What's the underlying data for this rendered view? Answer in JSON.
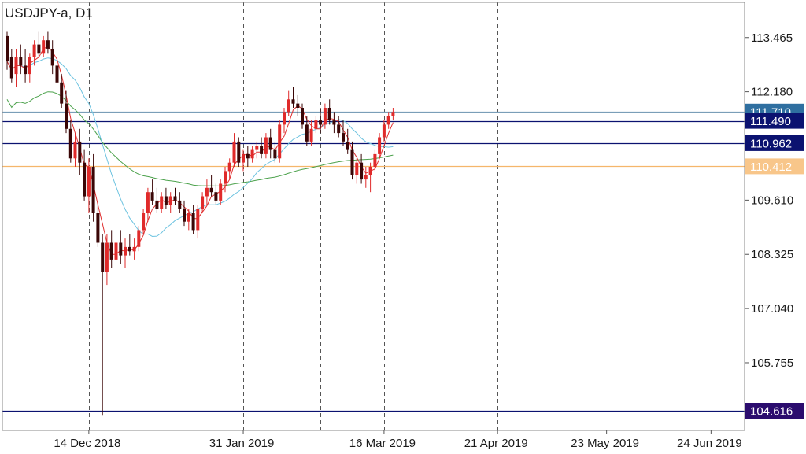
{
  "chart_data": {
    "type": "candlestick",
    "title": "USDJPY-a, D1",
    "symbol": "USDJPY-a",
    "timeframe": "D1",
    "ylim": [
      104.15,
      114.3
    ],
    "y_ticks": [
      113.465,
      112.18,
      109.61,
      108.325,
      107.04,
      105.755
    ],
    "y_tick_labels": [
      "113.465",
      "112.180",
      "109.610",
      "108.325",
      "107.040",
      "105.755"
    ],
    "x_ticks": [
      {
        "label": "14 Dec 2018",
        "bar": 18,
        "separator": true
      },
      {
        "label": "31 Jan 2019",
        "bar": 52,
        "separator": true
      },
      {
        "label": "16 Mar 2019",
        "bar": 83,
        "separator": true
      },
      {
        "label": "21 Apr 2019",
        "bar": 108,
        "separator": true
      },
      {
        "label": "23 May 2019",
        "bar": 132,
        "separator": false
      },
      {
        "label": "24 Jun 2019",
        "bar": 155,
        "separator": false
      }
    ],
    "extra_separators_bar": [
      69
    ],
    "colors": {
      "bull": "#e02a2a",
      "bear": "#3a0606",
      "ma_fast": "#e03030",
      "ma_mid": "#6ec3e0",
      "ma_slow": "#4ca24c",
      "grid": "#555555"
    },
    "horizontal_levels": [
      {
        "value": 111.71,
        "label": "111.710",
        "line": "#7a9eb8",
        "badge_bg": "#2f6fa0",
        "badge_fg": "#ffffff"
      },
      {
        "value": 111.49,
        "label": "111.490",
        "line": "#0b1270",
        "badge_bg": "#0b1270",
        "badge_fg": "#ffffff"
      },
      {
        "value": 110.962,
        "label": "110.962",
        "line": "#0b1270",
        "badge_bg": "#0b1270",
        "badge_fg": "#ffffff"
      },
      {
        "value": 110.412,
        "label": "110.412",
        "line": "#f5b66b",
        "badge_bg": "#f8c68a",
        "badge_fg": "#ffffff"
      },
      {
        "value": 104.616,
        "label": "104.616",
        "line": "#0b1270",
        "badge_bg": "#2b0c6e",
        "badge_fg": "#ffffff"
      }
    ],
    "ohlc": [
      [
        113.5,
        113.6,
        112.7,
        112.9
      ],
      [
        113.0,
        113.2,
        112.4,
        112.5
      ],
      [
        112.6,
        113.2,
        112.3,
        113.0
      ],
      [
        113.0,
        113.3,
        112.6,
        112.8
      ],
      [
        112.8,
        113.2,
        112.4,
        112.6
      ],
      [
        112.6,
        113.1,
        112.4,
        113.0
      ],
      [
        113.0,
        113.4,
        112.8,
        113.3
      ],
      [
        113.3,
        113.6,
        113.0,
        113.1
      ],
      [
        113.1,
        113.5,
        113.0,
        113.4
      ],
      [
        113.4,
        113.6,
        113.1,
        113.2
      ],
      [
        113.2,
        113.4,
        112.6,
        112.8
      ],
      [
        112.8,
        113.0,
        112.3,
        112.4
      ],
      [
        112.4,
        112.6,
        111.8,
        111.9
      ],
      [
        111.9,
        112.2,
        111.2,
        111.3
      ],
      [
        111.3,
        111.5,
        110.5,
        110.6
      ],
      [
        110.6,
        111.2,
        110.4,
        111.0
      ],
      [
        111.0,
        111.3,
        110.2,
        110.5
      ],
      [
        110.5,
        110.8,
        109.6,
        109.7
      ],
      [
        109.7,
        110.6,
        109.3,
        110.4
      ],
      [
        110.4,
        110.7,
        109.1,
        109.3
      ],
      [
        109.3,
        109.5,
        108.5,
        108.6
      ],
      [
        108.6,
        108.8,
        104.5,
        107.9
      ],
      [
        107.9,
        108.8,
        107.6,
        108.6
      ],
      [
        108.6,
        108.9,
        108.0,
        108.2
      ],
      [
        108.2,
        108.8,
        108.0,
        108.6
      ],
      [
        108.6,
        108.9,
        108.1,
        108.3
      ],
      [
        108.3,
        108.7,
        108.0,
        108.5
      ],
      [
        108.5,
        108.8,
        108.3,
        108.4
      ],
      [
        108.4,
        108.7,
        108.2,
        108.5
      ],
      [
        108.5,
        109.0,
        108.4,
        108.9
      ],
      [
        108.9,
        109.4,
        108.8,
        109.3
      ],
      [
        109.3,
        109.9,
        109.1,
        109.8
      ],
      [
        109.8,
        110.1,
        109.5,
        109.6
      ],
      [
        109.6,
        109.9,
        109.3,
        109.4
      ],
      [
        109.4,
        109.8,
        109.3,
        109.7
      ],
      [
        109.7,
        109.9,
        109.4,
        109.5
      ],
      [
        109.5,
        109.8,
        109.3,
        109.7
      ],
      [
        109.7,
        109.9,
        109.5,
        109.6
      ],
      [
        109.6,
        109.8,
        109.3,
        109.4
      ],
      [
        109.4,
        109.6,
        109.0,
        109.1
      ],
      [
        109.1,
        109.4,
        108.9,
        109.3
      ],
      [
        109.3,
        109.5,
        108.8,
        108.9
      ],
      [
        108.9,
        109.5,
        108.7,
        109.4
      ],
      [
        109.4,
        109.8,
        109.3,
        109.7
      ],
      [
        109.7,
        110.1,
        109.5,
        109.9
      ],
      [
        109.9,
        110.2,
        109.7,
        109.8
      ],
      [
        109.8,
        110.0,
        109.5,
        109.6
      ],
      [
        109.6,
        110.1,
        109.5,
        110.0
      ],
      [
        110.0,
        110.4,
        109.8,
        110.3
      ],
      [
        110.3,
        110.6,
        110.1,
        110.5
      ],
      [
        110.5,
        111.2,
        110.4,
        111.0
      ],
      [
        111.0,
        111.1,
        110.4,
        110.5
      ],
      [
        110.5,
        110.8,
        110.3,
        110.7
      ],
      [
        110.7,
        110.9,
        110.4,
        110.6
      ],
      [
        110.6,
        110.9,
        110.5,
        110.8
      ],
      [
        110.8,
        111.0,
        110.6,
        110.9
      ],
      [
        110.9,
        111.1,
        110.6,
        110.7
      ],
      [
        110.7,
        111.2,
        110.6,
        111.1
      ],
      [
        111.1,
        111.3,
        110.6,
        110.8
      ],
      [
        110.8,
        111.0,
        110.5,
        110.6
      ],
      [
        110.6,
        111.5,
        110.5,
        111.4
      ],
      [
        111.4,
        111.8,
        111.2,
        111.7
      ],
      [
        111.7,
        112.2,
        111.6,
        112.0
      ],
      [
        112.0,
        112.3,
        111.8,
        111.9
      ],
      [
        111.9,
        112.1,
        111.6,
        111.8
      ],
      [
        111.8,
        111.9,
        111.3,
        111.4
      ],
      [
        111.4,
        111.6,
        110.9,
        111.0
      ],
      [
        111.0,
        111.5,
        110.9,
        111.3
      ],
      [
        111.3,
        111.6,
        111.2,
        111.5
      ],
      [
        111.5,
        111.8,
        111.2,
        111.4
      ],
      [
        111.4,
        111.9,
        111.3,
        111.8
      ],
      [
        111.8,
        112.0,
        111.4,
        111.5
      ],
      [
        111.5,
        111.7,
        111.2,
        111.4
      ],
      [
        111.4,
        111.6,
        111.1,
        111.2
      ],
      [
        111.2,
        111.5,
        110.9,
        111.0
      ],
      [
        111.0,
        111.3,
        110.7,
        110.8
      ],
      [
        110.8,
        111.0,
        110.1,
        110.2
      ],
      [
        110.2,
        110.6,
        110.0,
        110.5
      ],
      [
        110.5,
        110.7,
        110.0,
        110.1
      ],
      [
        110.1,
        110.4,
        109.9,
        110.2
      ],
      [
        110.2,
        110.5,
        109.8,
        110.4
      ],
      [
        110.4,
        110.8,
        110.3,
        110.7
      ],
      [
        110.7,
        111.2,
        110.6,
        111.1
      ],
      [
        111.1,
        111.5,
        111.0,
        111.4
      ],
      [
        111.4,
        111.7,
        111.3,
        111.6
      ],
      [
        111.6,
        111.8,
        111.5,
        111.7
      ]
    ]
  }
}
